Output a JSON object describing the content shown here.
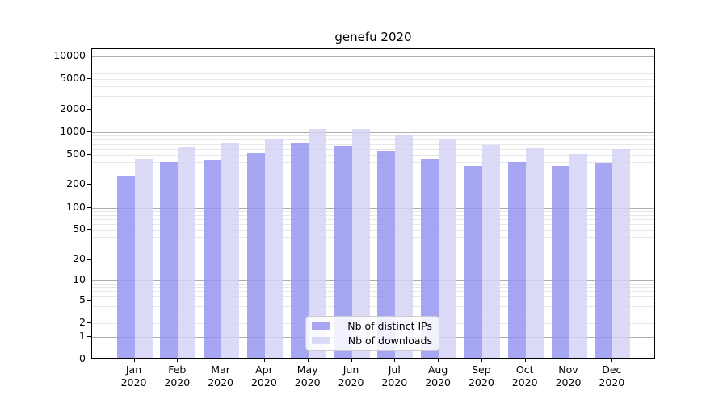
{
  "chart_data": {
    "type": "bar",
    "title": "genefu 2020",
    "categories": [
      "Jan",
      "Feb",
      "Mar",
      "Apr",
      "May",
      "Jun",
      "Jul",
      "Aug",
      "Sep",
      "Oct",
      "Nov",
      "Dec"
    ],
    "x_year": "2020",
    "series": [
      {
        "name": "Nb of distinct IPs",
        "color": "rgba(146,146,240,0.82)",
        "values": [
          267,
          401,
          422,
          527,
          706,
          659,
          566,
          442,
          355,
          401,
          355,
          394
        ]
      },
      {
        "name": "Nb of downloads",
        "color": "rgba(211,211,247,0.82)",
        "values": [
          442,
          625,
          712,
          820,
          1092,
          1113,
          931,
          831,
          672,
          614,
          509,
          599
        ]
      }
    ],
    "y_ticks": [
      10000,
      5000,
      2000,
      1000,
      500,
      200,
      100,
      50,
      20,
      10,
      5,
      2,
      1,
      0
    ],
    "y_scale": "log1p",
    "ylim": [
      0,
      12500
    ],
    "xlabel": "",
    "ylabel": "",
    "grid": "both",
    "legend_position": "lower center"
  }
}
